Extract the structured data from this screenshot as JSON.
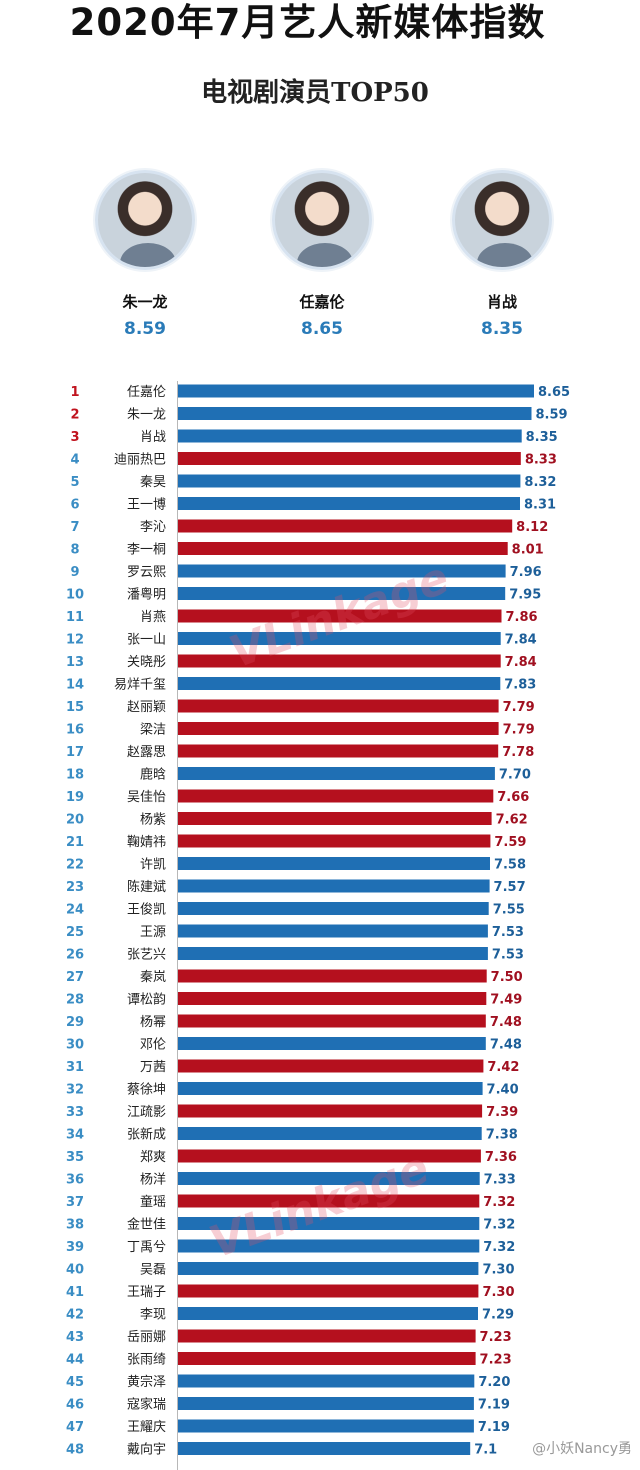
{
  "header": {
    "title": "2020年7月艺人新媒体指数",
    "subtitle": "电视剧演员TOP50"
  },
  "top3": [
    {
      "name": "朱一龙",
      "score": "8.59"
    },
    {
      "name": "任嘉伦",
      "score": "8.65"
    },
    {
      "name": "肖战",
      "score": "8.35"
    }
  ],
  "watermark_text": "VLinkage",
  "weibo_handle": "@小妖Nancy勇",
  "colors": {
    "blue": "#1f6fb4",
    "red": "#b5101e",
    "rank_red": "#c0131e",
    "rank_blue": "#3a8dc4",
    "value_blue": "#1d5f99",
    "value_red": "#a01020"
  },
  "chart_data": {
    "type": "bar",
    "orientation": "horizontal",
    "title": "电视剧演员TOP50",
    "xlim": [
      0,
      8.65
    ],
    "grid": false,
    "ranks": [
      1,
      2,
      3,
      4,
      5,
      6,
      7,
      8,
      9,
      10,
      11,
      12,
      13,
      14,
      15,
      16,
      17,
      18,
      19,
      20,
      21,
      22,
      23,
      24,
      25,
      26,
      27,
      28,
      29,
      30,
      31,
      32,
      33,
      34,
      35,
      36,
      37,
      38,
      39,
      40,
      41,
      42,
      43,
      44,
      45,
      46,
      47,
      48
    ],
    "categories": [
      "任嘉伦",
      "朱一龙",
      "肖战",
      "迪丽热巴",
      "秦昊",
      "王一博",
      "李沁",
      "李一桐",
      "罗云熙",
      "潘粤明",
      "肖燕",
      "张一山",
      "关晓彤",
      "易烊千玺",
      "赵丽颖",
      "梁洁",
      "赵露思",
      "鹿晗",
      "吴佳怡",
      "杨紫",
      "鞠婧祎",
      "许凯",
      "陈建斌",
      "王俊凯",
      "王源",
      "张艺兴",
      "秦岚",
      "谭松韵",
      "杨幂",
      "邓伦",
      "万茜",
      "蔡徐坤",
      "江疏影",
      "张新成",
      "郑爽",
      "杨洋",
      "童瑶",
      "金世佳",
      "丁禹兮",
      "吴磊",
      "王瑞子",
      "李现",
      "岳丽娜",
      "张雨绮",
      "黄宗泽",
      "寇家瑞",
      "王耀庆",
      "戴向宇"
    ],
    "value_labels": [
      "8.65",
      "8.59",
      "8.35",
      "8.33",
      "8.32",
      "8.31",
      "8.12",
      "8.01",
      "7.96",
      "7.95",
      "7.86",
      "7.84",
      "7.84",
      "7.83",
      "7.79",
      "7.79",
      "7.78",
      "7.70",
      "7.66",
      "7.62",
      "7.59",
      "7.58",
      "7.57",
      "7.55",
      "7.53",
      "7.53",
      "7.50",
      "7.49",
      "7.48",
      "7.48",
      "7.42",
      "7.40",
      "7.39",
      "7.38",
      "7.36",
      "7.33",
      "7.32",
      "7.32",
      "7.32",
      "7.30",
      "7.30",
      "7.29",
      "7.23",
      "7.23",
      "7.20",
      "7.19",
      "7.19",
      "7.1"
    ],
    "values": [
      8.65,
      8.59,
      8.35,
      8.33,
      8.32,
      8.31,
      8.12,
      8.01,
      7.96,
      7.95,
      7.86,
      7.84,
      7.84,
      7.83,
      7.79,
      7.79,
      7.78,
      7.7,
      7.66,
      7.62,
      7.59,
      7.58,
      7.57,
      7.55,
      7.53,
      7.53,
      7.5,
      7.49,
      7.48,
      7.48,
      7.42,
      7.4,
      7.39,
      7.38,
      7.36,
      7.33,
      7.32,
      7.32,
      7.32,
      7.3,
      7.3,
      7.29,
      7.23,
      7.23,
      7.2,
      7.19,
      7.19,
      7.1
    ],
    "genders": [
      "m",
      "m",
      "m",
      "f",
      "m",
      "m",
      "f",
      "f",
      "m",
      "m",
      "f",
      "m",
      "f",
      "m",
      "f",
      "f",
      "f",
      "m",
      "f",
      "f",
      "f",
      "m",
      "m",
      "m",
      "m",
      "m",
      "f",
      "f",
      "f",
      "m",
      "f",
      "m",
      "f",
      "m",
      "f",
      "m",
      "f",
      "m",
      "m",
      "m",
      "f",
      "m",
      "f",
      "f",
      "m",
      "m",
      "m",
      "m"
    ]
  }
}
